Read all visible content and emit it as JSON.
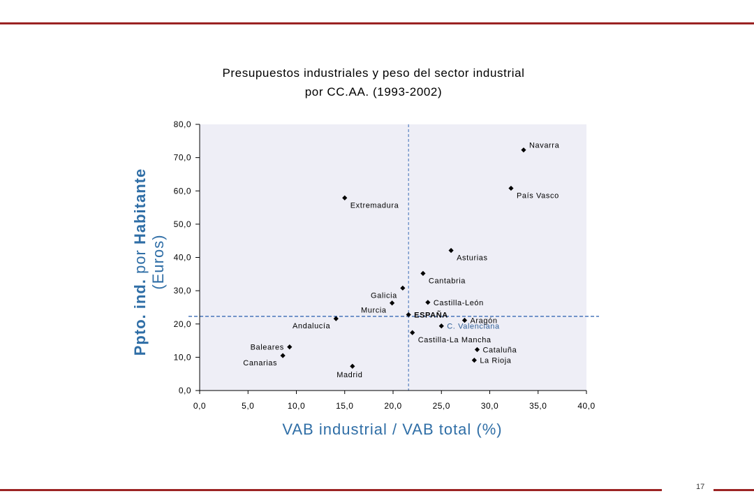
{
  "page_number": "17",
  "chart_data": {
    "type": "scatter",
    "title": [
      "Presupuestos industriales y peso del sector industrial",
      "por CC.AA.  (1993-2002)"
    ],
    "xlabel": "VAB industrial / VAB total (%)",
    "ylabel": {
      "part1": "Ppto. ind.",
      "part2": "por",
      "part3": "Habitante",
      "line2": "(Euros)"
    },
    "xlim": [
      0,
      40
    ],
    "ylim": [
      0,
      80
    ],
    "x_ticks": [
      "0,0",
      "5,0",
      "10,0",
      "15,0",
      "20,0",
      "25,0",
      "30,0",
      "35,0",
      "40,0"
    ],
    "y_ticks": [
      "0,0",
      "10,0",
      "20,0",
      "30,0",
      "40,0",
      "50,0",
      "60,0",
      "70,0",
      "80,0"
    ],
    "reference_lines": {
      "x": 21.6,
      "y": 22.3
    },
    "grid": false,
    "points": [
      {
        "label": "Navarra",
        "x": 33.5,
        "y": 72.3,
        "anchor": "right-above"
      },
      {
        "label": "País Vasco",
        "x": 32.2,
        "y": 60.8,
        "anchor": "right-below"
      },
      {
        "label": "Extremadura",
        "x": 15.0,
        "y": 57.9,
        "anchor": "right-below"
      },
      {
        "label": "Asturias",
        "x": 26.0,
        "y": 42.1,
        "anchor": "right-below"
      },
      {
        "label": "Cantabria",
        "x": 23.1,
        "y": 35.2,
        "anchor": "right-below"
      },
      {
        "label": "Galicia",
        "x": 21.0,
        "y": 30.8,
        "anchor": "left-below"
      },
      {
        "label": "Castilla-León",
        "x": 23.6,
        "y": 26.5,
        "anchor": "right"
      },
      {
        "label": "Murcia",
        "x": 19.9,
        "y": 26.3,
        "anchor": "left-below"
      },
      {
        "label": "ESPAÑA",
        "x": 21.6,
        "y": 22.8,
        "anchor": "right",
        "style": "bold"
      },
      {
        "label": "Andalucía",
        "x": 14.1,
        "y": 21.6,
        "anchor": "left-below"
      },
      {
        "label": "Aragón",
        "x": 27.4,
        "y": 21.1,
        "anchor": "right"
      },
      {
        "label": "C. Valenciana",
        "x": 25.0,
        "y": 19.4,
        "anchor": "right",
        "style": "blue"
      },
      {
        "label": "Castilla-La Mancha",
        "x": 22.0,
        "y": 17.4,
        "anchor": "right-below"
      },
      {
        "label": "Baleares",
        "x": 9.3,
        "y": 13.1,
        "anchor": "left"
      },
      {
        "label": "Cataluña",
        "x": 28.7,
        "y": 12.3,
        "anchor": "right"
      },
      {
        "label": "Canarias",
        "x": 8.6,
        "y": 10.5,
        "anchor": "left-below"
      },
      {
        "label": "La Rioja",
        "x": 28.4,
        "y": 9.1,
        "anchor": "right"
      },
      {
        "label": "Madrid",
        "x": 15.8,
        "y": 7.3,
        "anchor": "below"
      }
    ],
    "colors": {
      "plot_background": "#eeeef6",
      "marker": "#000000",
      "reference_line": "#3a6bb5",
      "axis_title": "#2f6ea6",
      "rule": "#9b2323"
    }
  }
}
